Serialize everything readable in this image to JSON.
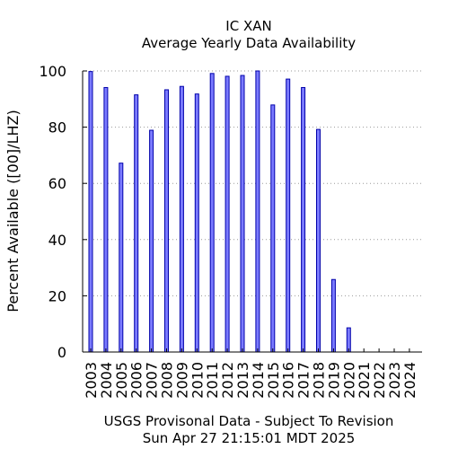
{
  "chart_data": {
    "type": "bar",
    "title": "IC XAN",
    "subtitle": "Average Yearly Data Availability",
    "ylabel": "Percent Available ([00]/LHZ)",
    "xlabel": "",
    "categories": [
      "2003",
      "2004",
      "2005",
      "2006",
      "2007",
      "2008",
      "2009",
      "2010",
      "2011",
      "2012",
      "2013",
      "2014",
      "2015",
      "2016",
      "2017",
      "2018",
      "2019",
      "2020",
      "2021",
      "2022",
      "2023",
      "2024"
    ],
    "values": [
      99.8,
      94.1,
      67.2,
      91.5,
      78.9,
      93.3,
      94.5,
      91.8,
      99.1,
      98.1,
      98.4,
      100,
      87.9,
      97.1,
      94.1,
      79.2,
      25.8,
      8.6,
      0,
      0,
      0,
      0
    ],
    "ylim": [
      0,
      100
    ],
    "yticks": [
      0,
      20,
      40,
      60,
      80,
      100
    ],
    "grid": true,
    "colors": {
      "bar_fill": "#7b7bff",
      "bar_stroke": "#0000aa"
    }
  },
  "footer": {
    "line1": "USGS Provisonal Data - Subject To Revision",
    "line2": "Sun Apr 27 21:15:01 MDT 2025"
  }
}
